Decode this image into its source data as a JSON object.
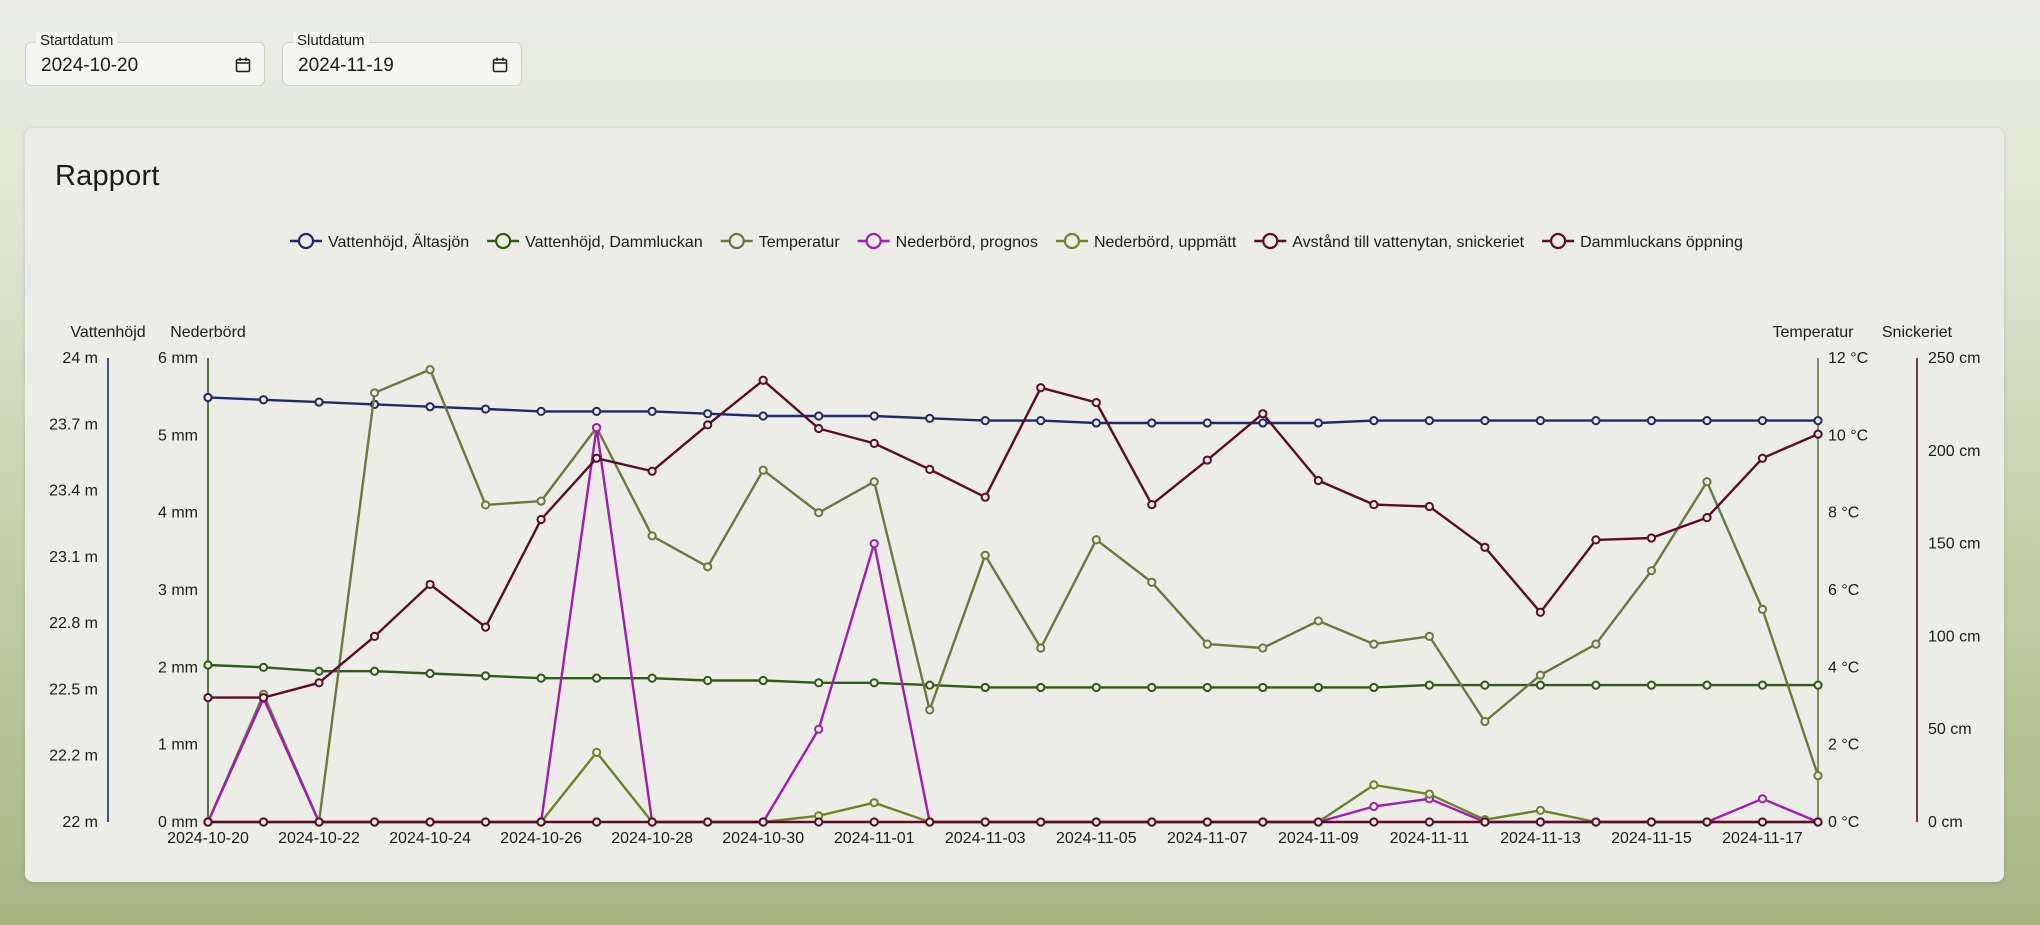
{
  "start_date": {
    "label": "Startdatum",
    "value": "2024-10-20",
    "icon": "calendar-icon"
  },
  "end_date": {
    "label": "Slutdatum",
    "value": "2024-11-19",
    "icon": "calendar-icon"
  },
  "report": {
    "title": "Rapport"
  },
  "chart_data": {
    "type": "line",
    "x": [
      "2024-10-20",
      "2024-10-21",
      "2024-10-22",
      "2024-10-23",
      "2024-10-24",
      "2024-10-25",
      "2024-10-26",
      "2024-10-27",
      "2024-10-28",
      "2024-10-29",
      "2024-10-30",
      "2024-10-31",
      "2024-11-01",
      "2024-11-02",
      "2024-11-03",
      "2024-11-04",
      "2024-11-05",
      "2024-11-06",
      "2024-11-07",
      "2024-11-08",
      "2024-11-09",
      "2024-11-10",
      "2024-11-11",
      "2024-11-12",
      "2024-11-13",
      "2024-11-14",
      "2024-11-15",
      "2024-11-16",
      "2024-11-17",
      "2024-11-18"
    ],
    "x_tick_labels": [
      "2024-10-20",
      "2024-10-22",
      "2024-10-24",
      "2024-10-26",
      "2024-10-28",
      "2024-10-30",
      "2024-11-01",
      "2024-11-03",
      "2024-11-05",
      "2024-11-07",
      "2024-11-09",
      "2024-11-11",
      "2024-11-13",
      "2024-11-15",
      "2024-11-17"
    ],
    "legend_position": "top",
    "grid": false,
    "axes": [
      {
        "id": "vh",
        "title": "Vattenhöjd",
        "position": "left-outer",
        "ticks": [
          "22 m",
          "22.2 m",
          "22.5 m",
          "22.8 m",
          "23.1 m",
          "23.4 m",
          "23.7 m",
          "24 m"
        ],
        "range": [
          22,
          24
        ]
      },
      {
        "id": "nb",
        "title": "Nederbörd",
        "position": "left-inner",
        "ticks": [
          "0 mm",
          "1 mm",
          "2 mm",
          "3 mm",
          "4 mm",
          "5 mm",
          "6 mm"
        ],
        "range": [
          0,
          6
        ]
      },
      {
        "id": "temp",
        "title": "Temperatur",
        "position": "right-inner",
        "ticks": [
          "0 °C",
          "2 °C",
          "4 °C",
          "6 °C",
          "8 °C",
          "10 °C",
          "12 °C"
        ],
        "range": [
          0,
          12
        ]
      },
      {
        "id": "sn",
        "title": "Snickeriet",
        "position": "right-outer",
        "ticks": [
          "0 cm",
          "50 cm",
          "100 cm",
          "150 cm",
          "200 cm",
          "250 cm"
        ],
        "range": [
          0,
          250
        ]
      }
    ],
    "series": [
      {
        "name": "Vattenhöjd, Ältasjön",
        "color": "#1f2a68",
        "axis": "vh",
        "values": [
          23.83,
          23.82,
          23.81,
          23.8,
          23.79,
          23.78,
          23.77,
          23.77,
          23.77,
          23.76,
          23.75,
          23.75,
          23.75,
          23.74,
          23.73,
          23.73,
          23.72,
          23.72,
          23.72,
          23.72,
          23.72,
          23.73,
          23.73,
          23.73,
          23.73,
          23.73,
          23.73,
          23.73,
          23.73,
          23.73
        ]
      },
      {
        "name": "Vattenhöjd, Dammluckan",
        "color": "#2e5b16",
        "axis": "nb",
        "values": [
          2.03,
          2.0,
          1.95,
          1.95,
          1.92,
          1.89,
          1.86,
          1.86,
          1.86,
          1.83,
          1.83,
          1.8,
          1.8,
          1.77,
          1.74,
          1.74,
          1.74,
          1.74,
          1.74,
          1.74,
          1.74,
          1.74,
          1.77,
          1.77,
          1.77,
          1.77,
          1.77,
          1.77,
          1.77,
          1.77
        ]
      },
      {
        "name": "Temperatur",
        "color": "#6b7a3c",
        "axis": "temp",
        "values": [
          0,
          3.3,
          0,
          11.1,
          11.7,
          8.2,
          8.3,
          10.2,
          7.4,
          6.6,
          9.1,
          8.0,
          8.8,
          2.9,
          6.9,
          4.5,
          7.3,
          6.2,
          4.6,
          4.5,
          5.2,
          4.6,
          4.8,
          2.6,
          3.8,
          4.6,
          6.5,
          8.8,
          5.5,
          1.2
        ]
      },
      {
        "name": "Nederbörd, prognos",
        "color": "#a21cb4",
        "axis": "nb",
        "values": [
          0,
          1.6,
          0,
          0,
          0,
          0,
          0,
          5.1,
          0,
          0,
          0,
          1.2,
          3.6,
          0,
          0,
          0,
          0,
          0,
          0,
          0,
          0,
          0.2,
          0.3,
          0,
          0,
          0,
          0,
          0,
          0.3,
          0
        ]
      },
      {
        "name": "Nederbörd, uppmätt",
        "color": "#6a8426",
        "axis": "nb",
        "values": [
          0,
          0,
          0,
          0,
          0,
          0,
          0,
          0.9,
          0,
          0,
          0,
          0.08,
          0.25,
          0,
          0,
          0,
          0,
          0,
          0,
          0,
          0,
          0.48,
          0.36,
          0.03,
          0.15,
          0,
          0,
          0,
          0,
          0
        ]
      },
      {
        "name": "Avstånd till vattenytan, snickeriet",
        "color": "#5b0b2b",
        "axis": "sn",
        "values": [
          67,
          67,
          75,
          100,
          128,
          105,
          163,
          196,
          189,
          214,
          238,
          212,
          204,
          190,
          175,
          234,
          226,
          171,
          195,
          220,
          184,
          171,
          170,
          148,
          113,
          152,
          153,
          164,
          196,
          209
        ]
      },
      {
        "name": "Dammluckans öppning",
        "color": "#5b0b2b",
        "axis": "sn",
        "values": [
          0,
          0,
          0,
          0,
          0,
          0,
          0,
          0,
          0,
          0,
          0,
          0,
          0,
          0,
          0,
          0,
          0,
          0,
          0,
          0,
          0,
          0,
          0,
          0,
          0,
          0,
          0,
          0,
          0,
          0
        ]
      }
    ]
  }
}
